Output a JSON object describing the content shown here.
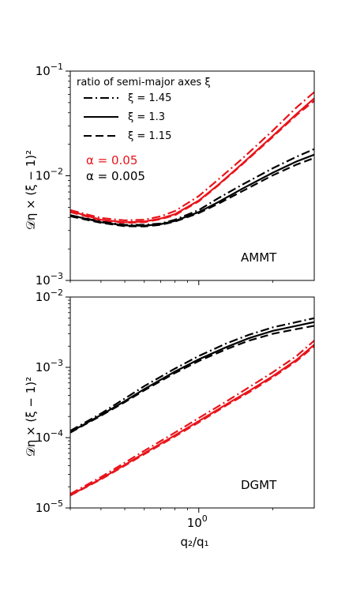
{
  "chart_data": [
    {
      "type": "line",
      "panel_label": "AMMT",
      "xscale": "log",
      "yscale": "log",
      "xlim": [
        0.3,
        2.95
      ],
      "ylim": [
        0.001,
        0.1
      ],
      "ylabel": "𝒟η × (ξ − 1)²",
      "y_ticks": [
        {
          "value": 0.1,
          "mant": "10",
          "exp": "−1"
        },
        {
          "value": 0.01,
          "mant": "10",
          "exp": "−2"
        },
        {
          "value": 0.001,
          "mant": "10",
          "exp": "−3"
        }
      ],
      "legend": {
        "title": "ratio of semi-major axes ξ",
        "entries": [
          {
            "label": "ξ = 1.45",
            "dash": "dashdot"
          },
          {
            "label": "ξ = 1.3",
            "dash": "solid"
          },
          {
            "label": "ξ = 1.15",
            "dash": "dashed"
          }
        ],
        "alpha_entries": [
          {
            "label": "α = 0.05",
            "color": "#e8141b"
          },
          {
            "label": "α = 0.005",
            "color": "#000000"
          }
        ],
        "position": "top-left"
      },
      "series": [
        {
          "color": "#e8141b",
          "dash": "dashdot",
          "x": [
            0.3,
            0.4,
            0.5,
            0.6,
            0.7,
            0.8,
            1.0,
            1.2,
            1.5,
            2.0,
            2.5,
            2.95
          ],
          "y": [
            0.0047,
            0.00395,
            0.00375,
            0.0038,
            0.0041,
            0.0046,
            0.0064,
            0.0092,
            0.0145,
            0.027,
            0.045,
            0.063
          ]
        },
        {
          "color": "#e8141b",
          "dash": "solid",
          "x": [
            0.3,
            0.4,
            0.5,
            0.6,
            0.7,
            0.8,
            1.0,
            1.2,
            1.5,
            2.0,
            2.5,
            2.95
          ],
          "y": [
            0.0046,
            0.0038,
            0.0036,
            0.00365,
            0.0039,
            0.0043,
            0.0058,
            0.0082,
            0.013,
            0.024,
            0.039,
            0.055
          ]
        },
        {
          "color": "#e8141b",
          "dash": "dashed",
          "x": [
            0.3,
            0.4,
            0.5,
            0.6,
            0.7,
            0.8,
            1.0,
            1.2,
            1.5,
            2.0,
            2.5,
            2.95
          ],
          "y": [
            0.0045,
            0.00375,
            0.00355,
            0.0036,
            0.00385,
            0.0042,
            0.0057,
            0.0081,
            0.0128,
            0.0235,
            0.038,
            0.052
          ]
        },
        {
          "color": "#000000",
          "dash": "dashdot",
          "x": [
            0.3,
            0.4,
            0.5,
            0.6,
            0.7,
            0.8,
            1.0,
            1.2,
            1.5,
            2.0,
            2.5,
            2.95
          ],
          "y": [
            0.0042,
            0.00365,
            0.0034,
            0.0034,
            0.0035,
            0.0038,
            0.0047,
            0.0061,
            0.0082,
            0.0118,
            0.0152,
            0.018
          ]
        },
        {
          "color": "#000000",
          "dash": "solid",
          "x": [
            0.3,
            0.4,
            0.5,
            0.6,
            0.7,
            0.8,
            1.0,
            1.2,
            1.5,
            2.0,
            2.5,
            2.95
          ],
          "y": [
            0.0042,
            0.0036,
            0.00335,
            0.00333,
            0.00345,
            0.0037,
            0.0045,
            0.0056,
            0.0075,
            0.0107,
            0.0137,
            0.0159
          ]
        },
        {
          "color": "#000000",
          "dash": "dashed",
          "x": [
            0.3,
            0.4,
            0.5,
            0.6,
            0.7,
            0.8,
            1.0,
            1.2,
            1.5,
            2.0,
            2.5,
            2.95
          ],
          "y": [
            0.0041,
            0.00355,
            0.0033,
            0.00328,
            0.0034,
            0.00365,
            0.0044,
            0.0054,
            0.0071,
            0.0101,
            0.0128,
            0.0148
          ]
        }
      ]
    },
    {
      "type": "line",
      "panel_label": "DGMT",
      "xscale": "log",
      "yscale": "log",
      "xlim": [
        0.3,
        2.95
      ],
      "ylim": [
        1e-05,
        0.01
      ],
      "xlabel": "q₂/q₁",
      "ylabel": "𝒟η × (ξ − 1)²",
      "x_ticks": [
        {
          "value": 1.0,
          "mant": "10",
          "exp": "0"
        }
      ],
      "y_ticks": [
        {
          "value": 0.01,
          "mant": "10",
          "exp": "−2"
        },
        {
          "value": 0.001,
          "mant": "10",
          "exp": "−3"
        },
        {
          "value": 0.0001,
          "mant": "10",
          "exp": "−4"
        },
        {
          "value": 1e-05,
          "mant": "10",
          "exp": "−5"
        }
      ],
      "series": [
        {
          "color": "#000000",
          "dash": "dashdot",
          "x": [
            0.3,
            0.4,
            0.5,
            0.6,
            0.8,
            1.0,
            1.3,
            1.6,
            2.0,
            2.5,
            2.95
          ],
          "y": [
            0.000125,
            0.00022,
            0.00036,
            0.00054,
            0.00096,
            0.00145,
            0.0022,
            0.0029,
            0.0037,
            0.0044,
            0.005
          ]
        },
        {
          "color": "#000000",
          "dash": "solid",
          "x": [
            0.3,
            0.4,
            0.5,
            0.6,
            0.8,
            1.0,
            1.3,
            1.6,
            2.0,
            2.5,
            2.95
          ],
          "y": [
            0.00012,
            0.00021,
            0.00033,
            0.00049,
            0.00087,
            0.0013,
            0.00195,
            0.0026,
            0.0033,
            0.0039,
            0.0044
          ]
        },
        {
          "color": "#000000",
          "dash": "dashed",
          "x": [
            0.3,
            0.4,
            0.5,
            0.6,
            0.8,
            1.0,
            1.3,
            1.6,
            2.0,
            2.5,
            2.95
          ],
          "y": [
            0.000118,
            0.000205,
            0.00032,
            0.00047,
            0.00083,
            0.00123,
            0.00182,
            0.0024,
            0.003,
            0.0035,
            0.0039
          ]
        },
        {
          "color": "#e8141b",
          "dash": "dashdot",
          "x": [
            0.3,
            0.4,
            0.5,
            0.6,
            0.8,
            1.0,
            1.3,
            1.6,
            2.0,
            2.5,
            2.95
          ],
          "y": [
            1.58e-05,
            2.75e-05,
            4.4e-05,
            6.5e-05,
            0.000118,
            0.00019,
            0.00033,
            0.00052,
            0.00085,
            0.00145,
            0.0024
          ]
        },
        {
          "color": "#e8141b",
          "dash": "solid",
          "x": [
            0.3,
            0.4,
            0.5,
            0.6,
            0.8,
            1.0,
            1.3,
            1.6,
            2.0,
            2.5,
            2.95
          ],
          "y": [
            1.52e-05,
            2.6e-05,
            4.1e-05,
            6e-05,
            0.000108,
            0.000172,
            0.0003,
            0.00046,
            0.00075,
            0.00128,
            0.0021
          ]
        },
        {
          "color": "#e8141b",
          "dash": "dashed",
          "x": [
            0.3,
            0.4,
            0.5,
            0.6,
            0.8,
            1.0,
            1.3,
            1.6,
            2.0,
            2.5,
            2.95
          ],
          "y": [
            1.5e-05,
            2.55e-05,
            4e-05,
            5.8e-05,
            0.000104,
            0.000165,
            0.00029,
            0.00044,
            0.00072,
            0.00123,
            0.002
          ]
        }
      ]
    }
  ]
}
